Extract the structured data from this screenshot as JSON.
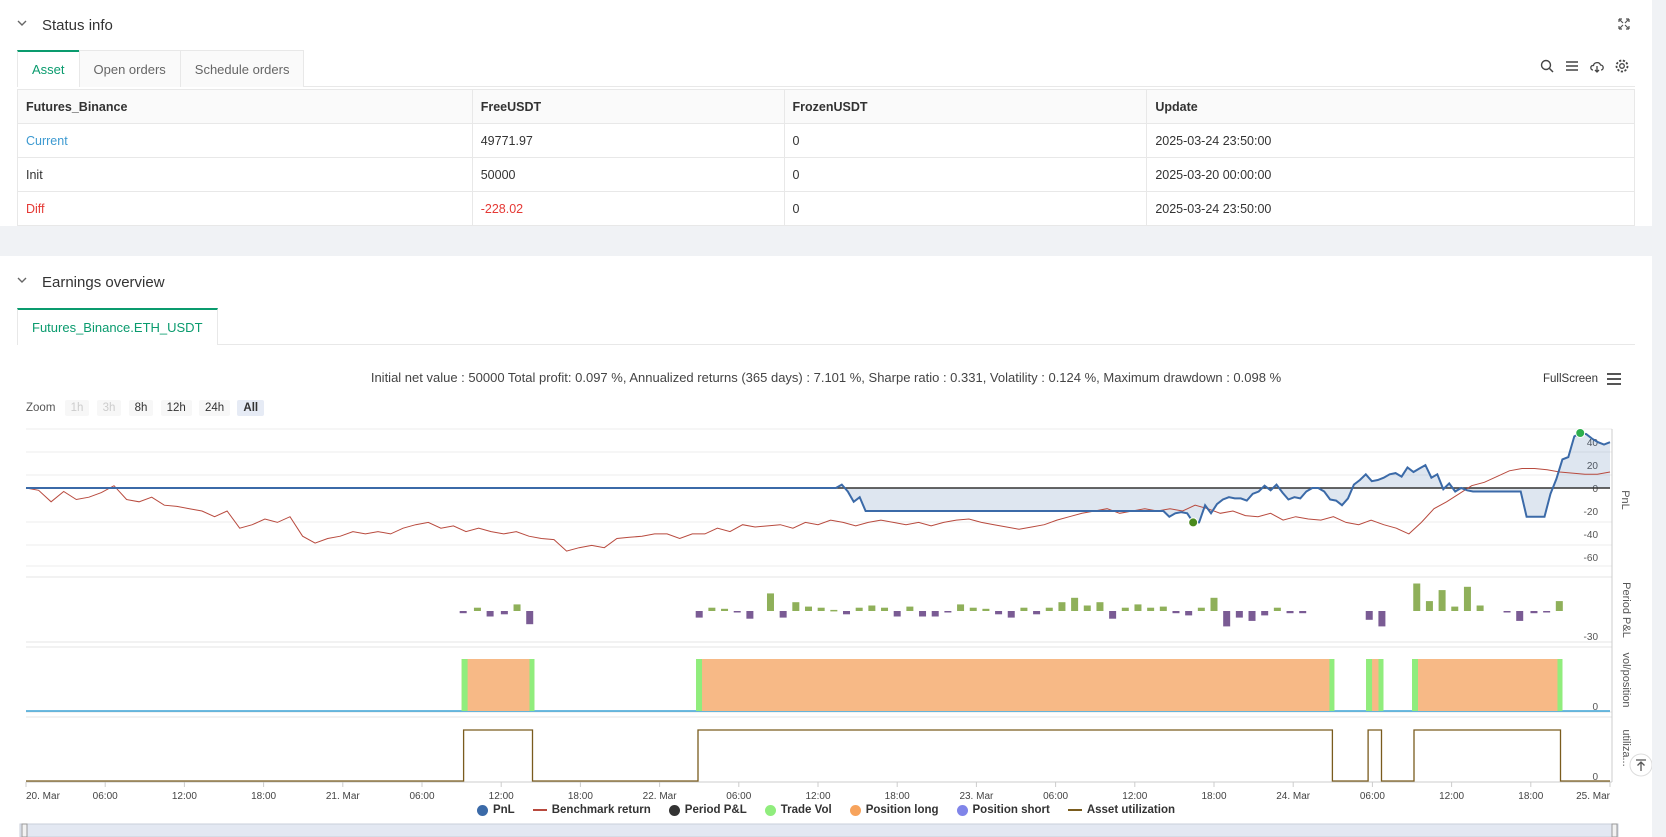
{
  "status": {
    "title": "Status info",
    "tabs": [
      "Asset",
      "Open orders",
      "Schedule orders"
    ],
    "table": {
      "headers": [
        "Futures_Binance",
        "FreeUSDT",
        "FrozenUSDT",
        "Update"
      ],
      "rows": [
        {
          "label": "Current",
          "free": "49771.97",
          "frozen": "0",
          "update": "2025-03-24 23:50:00"
        },
        {
          "label": "Init",
          "free": "50000",
          "frozen": "0",
          "update": "2025-03-20 00:00:00"
        },
        {
          "label": "Diff",
          "free": "-228.02",
          "frozen": "0",
          "update": "2025-03-24 23:50:00"
        }
      ]
    }
  },
  "earnings": {
    "title": "Earnings overview",
    "tab": "Futures_Binance.ETH_USDT",
    "summary": "Initial net value : 50000 Total profit: 0.097 %, Annualized returns (365 days) : 7.101 %, Sharpe ratio : 0.331, Volatility : 0.124 %, Maximum drawdown : 0.098 %",
    "fullscreen": "FullScreen",
    "zoom_label": "Zoom",
    "zoom_buttons": [
      "1h",
      "3h",
      "8h",
      "12h",
      "24h",
      "All"
    ]
  },
  "chart_data": {
    "type": "line",
    "x_ticks": [
      "20. Mar",
      "06:00",
      "12:00",
      "18:00",
      "21. Mar",
      "06:00",
      "12:00",
      "18:00",
      "22. Mar",
      "06:00",
      "12:00",
      "18:00",
      "23. Mar",
      "06:00",
      "12:00",
      "18:00",
      "24. Mar",
      "06:00",
      "12:00",
      "18:00",
      "25. Mar"
    ],
    "axes": {
      "pnl": {
        "label": "PnL",
        "ticks": [
          "40",
          "20",
          "0",
          "-20",
          "-40",
          "-60"
        ]
      },
      "period": {
        "label": "Period P&L",
        "ticks": [
          "-30"
        ]
      },
      "position": {
        "label": "vol/position",
        "ticks": [
          "0"
        ]
      },
      "util": {
        "label": "utiliza...",
        "ticks": [
          "0"
        ]
      }
    },
    "legend": [
      {
        "name": "PnL",
        "color": "#3b6aa8"
      },
      {
        "name": "Benchmark return",
        "color": "#b84a3e"
      },
      {
        "name": "Period P&L",
        "color": "#333333"
      },
      {
        "name": "Trade Vol",
        "color": "#90ed7d"
      },
      {
        "name": "Position long",
        "color": "#f7a35c"
      },
      {
        "name": "Position short",
        "color": "#8085e9"
      },
      {
        "name": "Asset utilization",
        "color": "#7a5c1e"
      }
    ],
    "pnl_series": [
      0,
      0,
      0,
      0,
      0,
      0,
      0,
      0,
      0,
      0,
      0,
      0,
      0,
      0,
      0,
      0,
      0,
      0,
      0,
      0,
      0,
      0,
      0,
      0,
      0,
      0,
      0,
      0,
      0,
      0,
      0,
      0,
      0,
      0,
      0,
      0,
      0,
      0,
      0,
      0,
      0,
      0,
      0,
      0,
      0,
      0,
      0,
      0,
      0,
      0,
      0,
      0,
      0,
      0,
      0,
      0,
      0,
      0,
      0,
      0,
      0,
      0,
      0,
      0,
      0,
      0,
      0,
      0,
      0,
      0,
      0,
      0,
      0,
      0,
      0,
      0,
      0,
      0,
      0,
      0,
      0,
      0,
      0,
      0,
      0,
      0,
      0,
      0,
      0,
      0,
      0,
      0,
      0,
      0,
      0,
      0,
      0,
      0,
      0,
      0,
      0,
      0,
      0,
      0,
      0,
      0,
      0,
      0,
      0,
      0,
      0,
      0,
      0,
      0,
      0,
      0,
      0,
      0,
      0,
      0,
      0,
      0,
      0,
      0,
      0,
      0,
      0,
      0,
      0,
      0,
      0,
      0,
      0,
      0,
      0,
      0,
      0,
      3,
      -3,
      -12,
      -8,
      -20,
      -20,
      -20,
      -20,
      -20,
      -20,
      -20,
      -20,
      -20,
      -20,
      -20,
      -20,
      -20,
      -20,
      -20,
      -20,
      -20,
      -20,
      -20,
      -20,
      -20,
      -20,
      -20,
      -20,
      -20,
      -20,
      -20,
      -20,
      -20,
      -20,
      -20,
      -20,
      -20,
      -20,
      -20,
      -20,
      -20,
      -20,
      -20,
      -20,
      -20,
      -20,
      -20,
      -20,
      -20,
      -20,
      -20,
      -20,
      -20,
      -20,
      -20,
      -25,
      -22,
      -21,
      -22,
      -30,
      -30,
      -15,
      -22,
      -14,
      -10,
      -8,
      -9,
      -9,
      -11,
      -5,
      -3,
      2,
      -2,
      3,
      -4,
      -10,
      -8,
      -9,
      -3,
      0,
      0,
      -3,
      -10,
      -11,
      -15,
      -9,
      3,
      7,
      12,
      6,
      7,
      9,
      12,
      13,
      10,
      18,
      14,
      17,
      20,
      9,
      12,
      -1,
      4,
      -3,
      0,
      -2,
      -3,
      -3,
      -3,
      -3,
      -3,
      -3,
      -3,
      -3,
      -3,
      -25,
      -25,
      -25,
      -25,
      -5,
      8,
      25,
      27,
      45,
      48,
      47,
      43,
      40,
      38,
      40
    ],
    "bench_series": [
      0,
      -2,
      -12,
      -3,
      -10,
      -8,
      -4,
      2,
      -10,
      -12,
      -8,
      -15,
      -16,
      -18,
      -20,
      -25,
      -20,
      -35,
      -32,
      -27,
      -30,
      -25,
      -42,
      -48,
      -44,
      -42,
      -38,
      -40,
      -38,
      -40,
      -35,
      -32,
      -30,
      -35,
      -33,
      -38,
      -35,
      -38,
      -40,
      -38,
      -42,
      -44,
      -45,
      -55,
      -52,
      -50,
      -52,
      -44,
      -43,
      -42,
      -40,
      -40,
      -44,
      -40,
      -40,
      -35,
      -38,
      -32,
      -34,
      -33,
      -32,
      -35,
      -30,
      -32,
      -28,
      -30,
      -33,
      -30,
      -28,
      -30,
      -32,
      -30,
      -33,
      -30,
      -28,
      -27,
      -30,
      -32,
      -34,
      -36,
      -34,
      -32,
      -28,
      -25,
      -22,
      -20,
      -18,
      -22,
      -20,
      -18,
      -20,
      -18,
      -20,
      -15,
      -18,
      -22,
      -20,
      -24,
      -25,
      -22,
      -28,
      -25,
      -27,
      -28,
      -25,
      -30,
      -32,
      -28,
      -32,
      -35,
      -40,
      -30,
      -18,
      -12,
      -5,
      2,
      5,
      10,
      15,
      17,
      17,
      16,
      14,
      13,
      12,
      12,
      14
    ],
    "period_bars": [
      {
        "x": 0.276,
        "v": -2
      },
      {
        "x": 0.285,
        "v": 3
      },
      {
        "x": 0.293,
        "v": -5
      },
      {
        "x": 0.302,
        "v": -3
      },
      {
        "x": 0.31,
        "v": 6
      },
      {
        "x": 0.318,
        "v": -12
      },
      {
        "x": 0.425,
        "v": -6
      },
      {
        "x": 0.433,
        "v": 3
      },
      {
        "x": 0.441,
        "v": 2
      },
      {
        "x": 0.449,
        "v": -1
      },
      {
        "x": 0.457,
        "v": -7
      },
      {
        "x": 0.47,
        "v": 16
      },
      {
        "x": 0.478,
        "v": -6
      },
      {
        "x": 0.486,
        "v": 8
      },
      {
        "x": 0.494,
        "v": 4
      },
      {
        "x": 0.502,
        "v": 3
      },
      {
        "x": 0.51,
        "v": 1
      },
      {
        "x": 0.518,
        "v": -3
      },
      {
        "x": 0.526,
        "v": 3
      },
      {
        "x": 0.534,
        "v": 5
      },
      {
        "x": 0.542,
        "v": 3
      },
      {
        "x": 0.55,
        "v": -5
      },
      {
        "x": 0.558,
        "v": 4
      },
      {
        "x": 0.566,
        "v": -5
      },
      {
        "x": 0.574,
        "v": -5
      },
      {
        "x": 0.582,
        "v": -1
      },
      {
        "x": 0.59,
        "v": 6
      },
      {
        "x": 0.598,
        "v": 3
      },
      {
        "x": 0.606,
        "v": 2
      },
      {
        "x": 0.614,
        "v": -3
      },
      {
        "x": 0.622,
        "v": -6
      },
      {
        "x": 0.63,
        "v": 3
      },
      {
        "x": 0.638,
        "v": -3
      },
      {
        "x": 0.646,
        "v": 3
      },
      {
        "x": 0.654,
        "v": 8
      },
      {
        "x": 0.662,
        "v": 12
      },
      {
        "x": 0.67,
        "v": 5
      },
      {
        "x": 0.678,
        "v": 8
      },
      {
        "x": 0.686,
        "v": -7
      },
      {
        "x": 0.694,
        "v": 3
      },
      {
        "x": 0.702,
        "v": 6
      },
      {
        "x": 0.71,
        "v": 3
      },
      {
        "x": 0.718,
        "v": 4
      },
      {
        "x": 0.726,
        "v": -2
      },
      {
        "x": 0.734,
        "v": -4
      },
      {
        "x": 0.742,
        "v": 3
      },
      {
        "x": 0.75,
        "v": 12
      },
      {
        "x": 0.758,
        "v": -14
      },
      {
        "x": 0.766,
        "v": -6
      },
      {
        "x": 0.774,
        "v": -9
      },
      {
        "x": 0.782,
        "v": -4
      },
      {
        "x": 0.79,
        "v": 3
      },
      {
        "x": 0.798,
        "v": -2
      },
      {
        "x": 0.806,
        "v": -2
      },
      {
        "x": 0.848,
        "v": -8
      },
      {
        "x": 0.856,
        "v": -14
      },
      {
        "x": 0.878,
        "v": 25
      },
      {
        "x": 0.886,
        "v": 9
      },
      {
        "x": 0.894,
        "v": 19
      },
      {
        "x": 0.902,
        "v": 4
      },
      {
        "x": 0.91,
        "v": 22
      },
      {
        "x": 0.918,
        "v": 5
      },
      {
        "x": 0.935,
        "v": -1
      },
      {
        "x": 0.943,
        "v": -9
      },
      {
        "x": 0.952,
        "v": -2
      },
      {
        "x": 0.96,
        "v": -1
      },
      {
        "x": 0.968,
        "v": 9
      }
    ],
    "position_blocks": [
      [
        0.275,
        0.321
      ],
      [
        0.423,
        0.826
      ],
      [
        0.846,
        0.857
      ],
      [
        0.875,
        0.97
      ]
    ]
  }
}
